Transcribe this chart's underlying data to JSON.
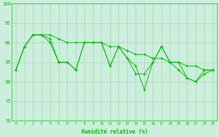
{
  "x": [
    0,
    1,
    2,
    3,
    4,
    5,
    6,
    7,
    8,
    9,
    10,
    11,
    12,
    13,
    14,
    15,
    16,
    17,
    18,
    19,
    20,
    21,
    22,
    23
  ],
  "line1": [
    83,
    89,
    92,
    92,
    90,
    85,
    85,
    83,
    90,
    90,
    90,
    84,
    89,
    86,
    84,
    78,
    85,
    89,
    85,
    85,
    81,
    80,
    83,
    83
  ],
  "line2": [
    83,
    89,
    92,
    92,
    91,
    85,
    85,
    83,
    90,
    90,
    90,
    84,
    89,
    86,
    82,
    82,
    85,
    89,
    85,
    83,
    81,
    80,
    82,
    83
  ],
  "line3": [
    83,
    89,
    92,
    92,
    92,
    91,
    90,
    90,
    90,
    90,
    90,
    89,
    89,
    88,
    87,
    87,
    86,
    86,
    85,
    85,
    84,
    84,
    83,
    83
  ],
  "line_color": "#00bb00",
  "bg_color": "#cceedd",
  "grid_color": "#aaccaa",
  "xlabel": "Humidité relative (%)",
  "ylim": [
    70,
    100
  ],
  "xlim": [
    -0.5,
    23.5
  ],
  "yticks": [
    70,
    75,
    80,
    85,
    90,
    95,
    100
  ],
  "xticks": [
    0,
    1,
    2,
    3,
    4,
    5,
    6,
    7,
    8,
    9,
    10,
    11,
    12,
    13,
    14,
    15,
    16,
    17,
    18,
    19,
    20,
    21,
    22,
    23
  ]
}
